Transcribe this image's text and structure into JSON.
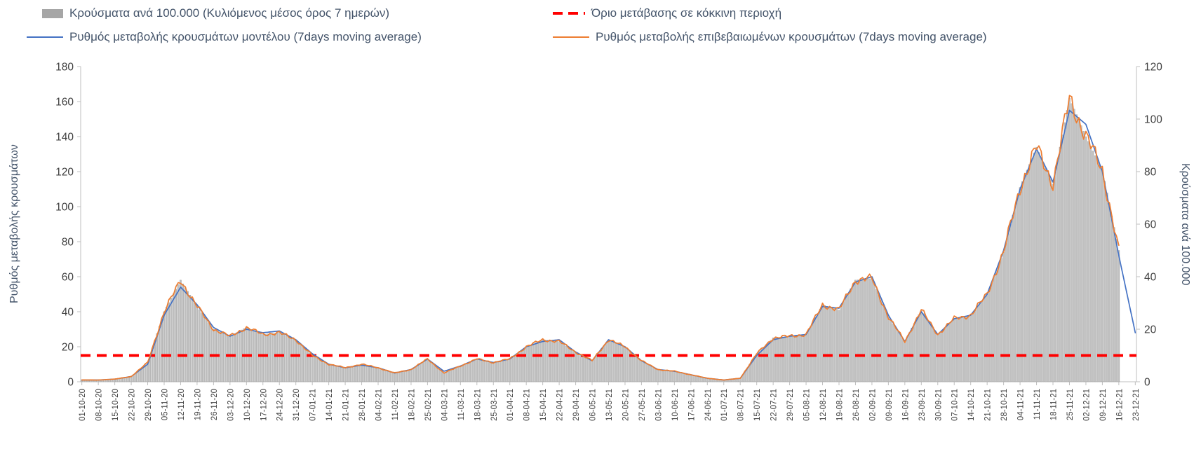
{
  "colors": {
    "bar": "#c0c0c0",
    "bar_stroke": "#8f8f8f",
    "model_line": "#4472c4",
    "confirmed_line": "#ed7d31",
    "threshold": "#ff0000",
    "axis": "#bfbfbf",
    "tick_text": "#404040",
    "legend_text": "#44546a"
  },
  "chart_data": {
    "type": "combo: daily gray bars (cases per 100k, right axis) + two 7-day moving average lines (rate of change, left axis); values below are weekly anchors at each x tick",
    "grid": false,
    "legend_position": "top",
    "categories": [
      "01-10-20",
      "08-10-20",
      "15-10-20",
      "22-10-20",
      "29-10-20",
      "05-11-20",
      "12-11-20",
      "19-11-20",
      "26-11-20",
      "03-12-20",
      "10-12-20",
      "17-12-20",
      "24-12-20",
      "31-12-20",
      "07-01-21",
      "14-01-21",
      "21-01-21",
      "28-01-21",
      "04-02-21",
      "11-02-21",
      "18-02-21",
      "25-02-21",
      "04-03-21",
      "11-03-21",
      "18-03-21",
      "25-03-21",
      "01-04-21",
      "08-04-21",
      "15-04-21",
      "22-04-21",
      "29-04-21",
      "06-05-21",
      "13-05-21",
      "20-05-21",
      "27-05-21",
      "03-06-21",
      "10-06-21",
      "17-06-21",
      "24-06-21",
      "01-07-21",
      "08-07-21",
      "15-07-21",
      "22-07-21",
      "29-07-21",
      "05-08-21",
      "12-08-21",
      "19-08-21",
      "26-08-21",
      "02-09-21",
      "09-09-21",
      "16-09-21",
      "23-09-21",
      "30-09-21",
      "07-10-21",
      "14-10-21",
      "21-10-21",
      "28-10-21",
      "04-11-21",
      "11-11-21",
      "18-11-21",
      "25-11-21",
      "02-12-21",
      "09-12-21",
      "16-12-21",
      "23-12-21"
    ],
    "series": [
      {
        "name": "Κρούσματα ανά 100.000 (Κυλιόμενος μέσος όρος 7 ημερών)",
        "type": "bar",
        "axis": "right",
        "color": "#c0c0c0",
        "values": [
          0.7,
          0.7,
          1,
          2,
          7.3,
          26.7,
          38.7,
          28.7,
          20,
          17.3,
          20.7,
          18,
          18.7,
          16,
          10,
          6.7,
          5.3,
          6.7,
          5.3,
          3.3,
          4.7,
          8.7,
          3.3,
          6,
          8.7,
          7.3,
          8.7,
          13.3,
          16,
          15.3,
          11.3,
          8,
          16,
          13.3,
          8,
          4.7,
          4,
          2.7,
          1.3,
          0.7,
          1.3,
          10.7,
          16.7,
          17.3,
          18,
          29.3,
          27.3,
          38.7,
          39.3,
          24.7,
          15.3,
          27.3,
          18,
          24,
          25.3,
          33.3,
          49.3,
          74,
          89.3,
          75.3,
          108,
          93.3,
          80.7,
          50,
          null
        ]
      },
      {
        "name": "Ρυθμός μεταβολής κρουσμάτων μοντέλου (7days moving average)",
        "type": "line",
        "axis": "left",
        "color": "#4472c4",
        "values": [
          1,
          1,
          1.5,
          3,
          10,
          38,
          54,
          44,
          31,
          26,
          30,
          28,
          29,
          24,
          16,
          10,
          8,
          9.5,
          8,
          5,
          7,
          13,
          6,
          9,
          13,
          11,
          13,
          20,
          23,
          24,
          17,
          12,
          24,
          20,
          12,
          7,
          6,
          4,
          2,
          1,
          2,
          15,
          24,
          26,
          27,
          43,
          42,
          57,
          60,
          38,
          23,
          40,
          27,
          36,
          38,
          50,
          75,
          110,
          133,
          114,
          155,
          147,
          120,
          72,
          28
        ]
      },
      {
        "name": "Ρυθμός μεταβολής επιβεβαιωμένων κρουσμάτων (7days moving average)",
        "type": "line",
        "axis": "left",
        "color": "#ed7d31",
        "values": [
          1,
          1,
          1.5,
          3,
          11,
          40,
          58,
          43,
          30,
          26,
          31,
          27,
          28,
          24,
          15,
          10,
          8,
          10,
          8,
          5,
          7,
          13,
          5,
          9,
          13,
          11,
          13,
          20,
          24,
          23,
          17,
          12,
          24,
          20,
          12,
          7,
          6,
          4,
          2,
          1,
          2,
          16,
          25,
          26,
          27,
          44,
          41,
          58,
          59,
          37,
          23,
          41,
          27,
          36,
          38,
          50,
          74,
          111,
          134,
          113,
          162,
          140,
          121,
          75,
          null
        ]
      }
    ],
    "threshold": {
      "name": "Όριο μετάβασης σε κόκκινη περιοχή",
      "axis": "left",
      "value": 15,
      "value_right_axis": 10,
      "color": "#ff0000",
      "style": "dashed"
    },
    "left_axis": {
      "title": "Ρυθμός μεταβολής κρουσμάτων",
      "min": 0,
      "max": 180,
      "step": 20
    },
    "right_axis": {
      "title": "Κρούσματα ανά 100.000",
      "min": 0,
      "max": 120,
      "step": 20
    }
  }
}
